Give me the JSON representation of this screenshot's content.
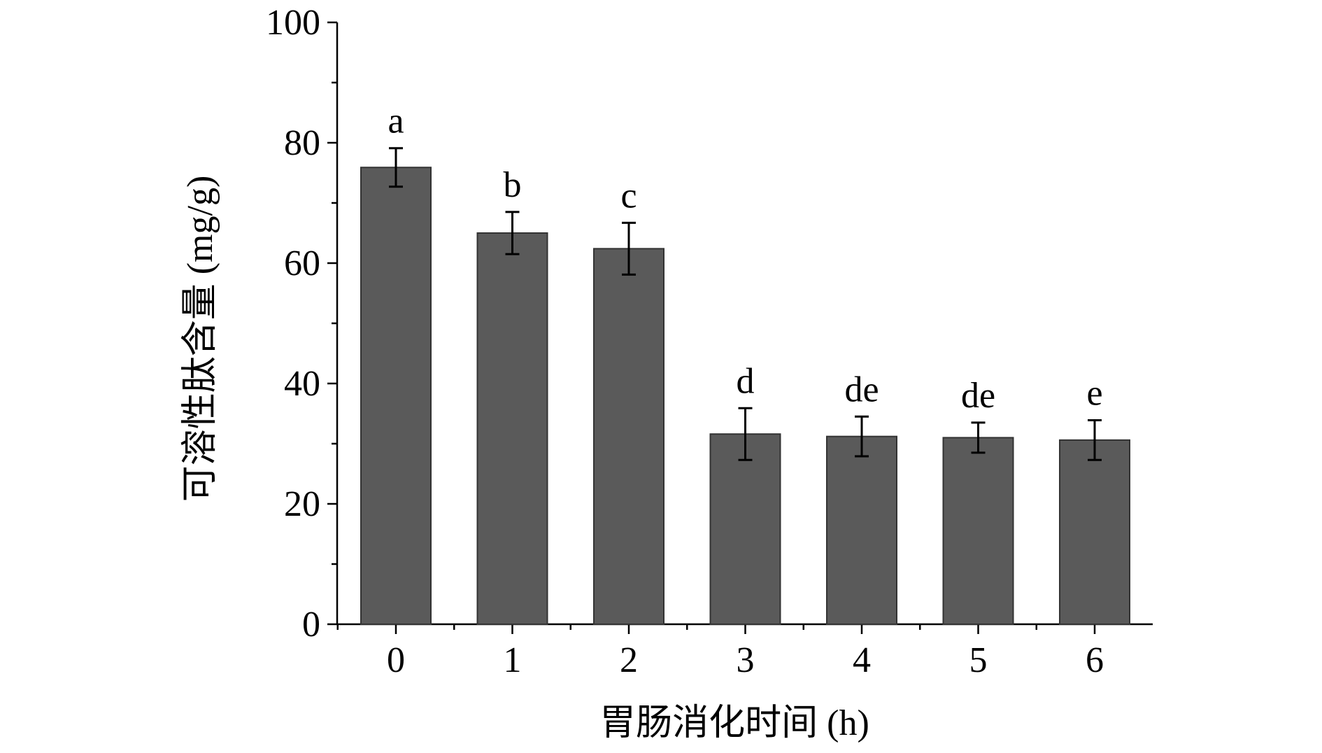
{
  "chart_data": {
    "type": "bar",
    "title": "",
    "xlabel": "胃肠消化时间 (h)",
    "ylabel": "可溶性肽含量 (mg/g)",
    "categories": [
      "0",
      "1",
      "2",
      "3",
      "4",
      "5",
      "6"
    ],
    "values": [
      75.9,
      65.0,
      62.4,
      31.6,
      31.2,
      31.0,
      30.6
    ],
    "errors": [
      3.2,
      3.5,
      4.3,
      4.3,
      3.3,
      2.5,
      3.3
    ],
    "significance_labels": [
      "a",
      "b",
      "c",
      "d",
      "de",
      "de",
      "e"
    ],
    "ylim": [
      0,
      100
    ],
    "yticks": [
      0,
      20,
      40,
      60,
      80,
      100
    ],
    "grid": false,
    "legend": "none",
    "colors": {
      "bar_fill": "#5a5a5a",
      "bar_stroke": "#333333",
      "axis": "#000000",
      "error_bar": "#000000"
    }
  }
}
